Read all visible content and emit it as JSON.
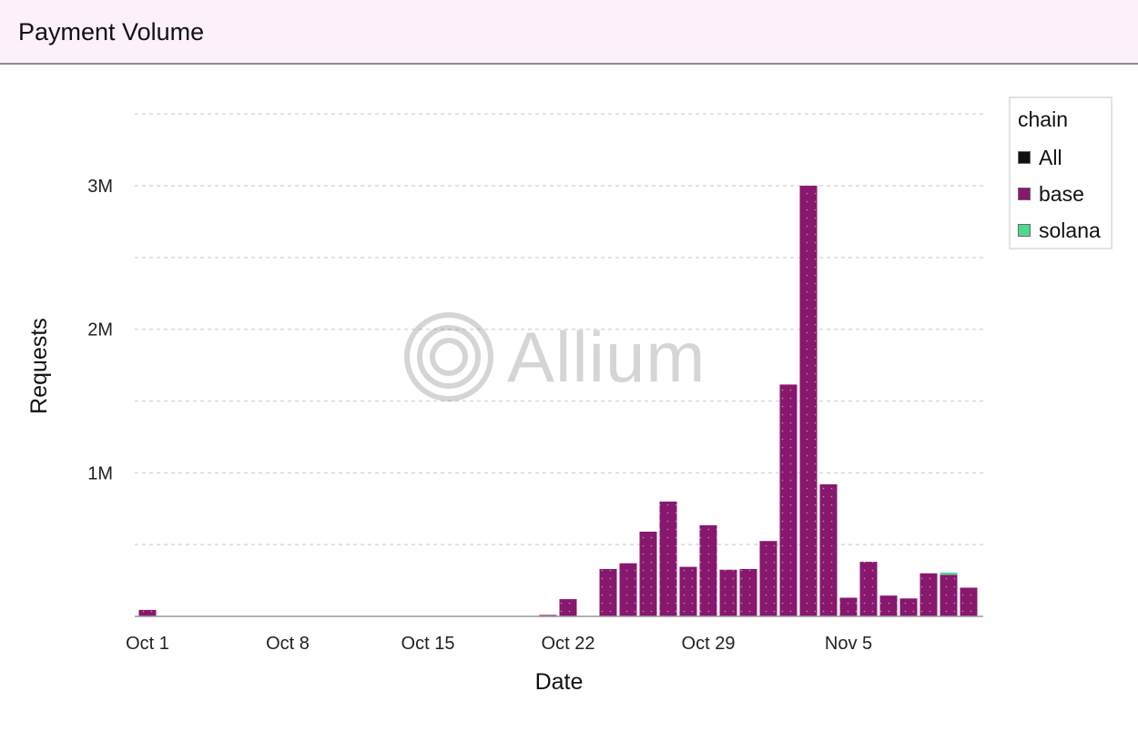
{
  "header": {
    "title": "Payment Volume"
  },
  "watermark": {
    "text": "Allium"
  },
  "legend": {
    "title": "chain",
    "items": [
      {
        "label": "All",
        "color": "#111111"
      },
      {
        "label": "base",
        "color": "#87186e"
      },
      {
        "label": "solana",
        "color": "#4dd98e"
      }
    ]
  },
  "chart_data": {
    "type": "bar",
    "stacked": true,
    "xlabel": "Date",
    "ylabel": "Requests",
    "ylim": [
      0,
      3500000
    ],
    "yticks": [
      {
        "value": 1000000,
        "label": "1M"
      },
      {
        "value": 2000000,
        "label": "2M"
      },
      {
        "value": 3000000,
        "label": "3M"
      }
    ],
    "gridlines": [
      500000,
      1000000,
      1500000,
      2000000,
      2500000,
      3000000,
      3500000
    ],
    "grid": true,
    "legend_position": "top-right",
    "xticks": [
      {
        "date": "Oct 1",
        "label": "Oct 1"
      },
      {
        "date": "Oct 8",
        "label": "Oct 8"
      },
      {
        "date": "Oct 15",
        "label": "Oct 15"
      },
      {
        "date": "Oct 22",
        "label": "Oct 22"
      },
      {
        "date": "Oct 29",
        "label": "Oct 29"
      },
      {
        "date": "Nov 5",
        "label": "Nov 5"
      }
    ],
    "categories": [
      "Oct 1",
      "Oct 2",
      "Oct 3",
      "Oct 4",
      "Oct 5",
      "Oct 6",
      "Oct 7",
      "Oct 8",
      "Oct 9",
      "Oct 10",
      "Oct 11",
      "Oct 12",
      "Oct 13",
      "Oct 14",
      "Oct 15",
      "Oct 16",
      "Oct 17",
      "Oct 18",
      "Oct 19",
      "Oct 20",
      "Oct 21",
      "Oct 22",
      "Oct 23",
      "Oct 24",
      "Oct 25",
      "Oct 26",
      "Oct 27",
      "Oct 28",
      "Oct 29",
      "Oct 30",
      "Oct 31",
      "Nov 1",
      "Nov 2",
      "Nov 3",
      "Nov 4",
      "Nov 5",
      "Nov 6",
      "Nov 7",
      "Nov 8",
      "Nov 9",
      "Nov 10",
      "Nov 11",
      "Nov 12"
    ],
    "series": [
      {
        "name": "All",
        "values": [
          0,
          0,
          0,
          0,
          0,
          0,
          0,
          0,
          0,
          0,
          0,
          0,
          0,
          0,
          0,
          0,
          0,
          0,
          0,
          0,
          0,
          0,
          0,
          0,
          0,
          0,
          0,
          0,
          0,
          0,
          0,
          0,
          0,
          0,
          0,
          0,
          0,
          0,
          0,
          0,
          0,
          0,
          0
        ]
      },
      {
        "name": "base",
        "values": [
          45000,
          0,
          0,
          0,
          0,
          0,
          0,
          0,
          0,
          0,
          0,
          0,
          0,
          0,
          0,
          0,
          0,
          0,
          0,
          0,
          10000,
          120000,
          0,
          330000,
          370000,
          590000,
          800000,
          345000,
          635000,
          325000,
          330000,
          525000,
          1615000,
          3000000,
          920000,
          130000,
          380000,
          145000,
          125000,
          300000,
          290000,
          200000,
          0
        ]
      },
      {
        "name": "solana",
        "values": [
          0,
          0,
          0,
          0,
          0,
          0,
          0,
          0,
          0,
          0,
          0,
          0,
          0,
          0,
          0,
          0,
          0,
          0,
          0,
          0,
          0,
          0,
          0,
          0,
          0,
          0,
          0,
          0,
          0,
          0,
          0,
          0,
          0,
          0,
          0,
          0,
          0,
          0,
          0,
          0,
          15000,
          0,
          0
        ]
      }
    ]
  }
}
